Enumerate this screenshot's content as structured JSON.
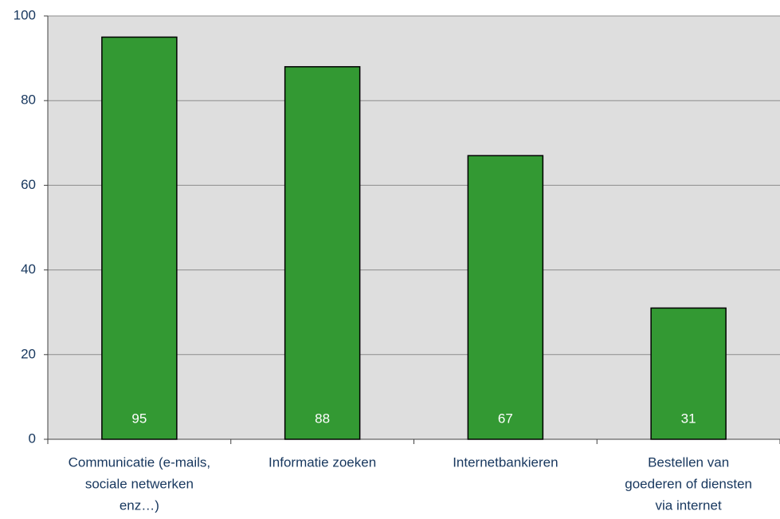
{
  "chart_data": {
    "type": "bar",
    "categories": [
      [
        "Communicatie (e-mails,",
        "sociale netwerken",
        "enz…)"
      ],
      [
        "Informatie zoeken"
      ],
      [
        "Internetbankieren"
      ],
      [
        "Bestellen van",
        "goederen of diensten",
        "via internet"
      ]
    ],
    "values": [
      95,
      88,
      67,
      31
    ],
    "color": "#339933",
    "ylim": [
      0,
      100
    ],
    "yticks": [
      0,
      20,
      40,
      60,
      80,
      100
    ],
    "grid": true
  }
}
